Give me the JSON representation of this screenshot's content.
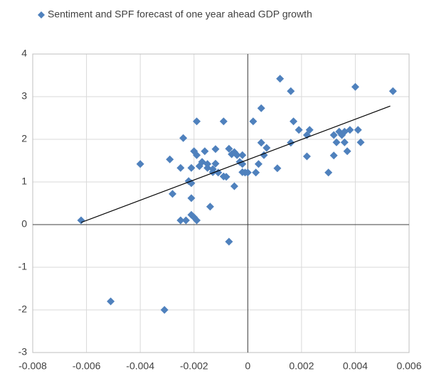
{
  "chart_data": {
    "type": "scatter",
    "series": [
      {
        "name": "Sentiment and SPF forecast of one year ahead GDP growth",
        "color": "#4f81bd",
        "x": [
          -0.0062,
          -0.0051,
          -0.004,
          -0.0031,
          -0.0029,
          -0.0028,
          -0.0025,
          -0.0025,
          -0.0024,
          -0.0023,
          -0.0022,
          -0.0021,
          -0.0021,
          -0.0021,
          -0.0021,
          -0.002,
          -0.002,
          -0.0019,
          -0.0019,
          -0.0019,
          -0.0018,
          -0.0017,
          -0.0016,
          -0.0015,
          -0.0015,
          -0.0014,
          -0.0013,
          -0.0013,
          -0.0012,
          -0.0012,
          -0.0011,
          -0.0009,
          -0.0009,
          -0.0008,
          -0.0007,
          -0.0007,
          -0.0006,
          -0.0005,
          -0.0005,
          -0.0004,
          -0.0003,
          -0.0002,
          -0.0002,
          -0.0002,
          -0.0001,
          0,
          0.0002,
          0.0003,
          0.0004,
          0.0005,
          0.0005,
          0.0006,
          0.0007,
          0.0011,
          0.0012,
          0.0016,
          0.0016,
          0.0017,
          0.0019,
          0.0022,
          0.0022,
          0.0023,
          0.003,
          0.0032,
          0.0032,
          0.0033,
          0.0034,
          0.0035,
          0.0036,
          0.0036,
          0.0037,
          0.0038,
          0.004,
          0.0041,
          0.0042,
          0.0054
        ],
        "values": [
          0.1,
          -1.8,
          1.42,
          -2.0,
          1.53,
          0.72,
          0.1,
          1.33,
          2.03,
          0.1,
          1.02,
          0.62,
          0.97,
          1.33,
          0.23,
          1.72,
          0.17,
          2.42,
          0.1,
          1.63,
          1.37,
          1.47,
          1.72,
          1.33,
          1.42,
          0.42,
          1.3,
          1.23,
          1.77,
          1.43,
          1.22,
          1.13,
          2.42,
          1.12,
          -0.4,
          1.78,
          1.65,
          0.9,
          1.7,
          1.63,
          1.47,
          1.23,
          1.42,
          1.63,
          1.22,
          1.22,
          2.42,
          1.22,
          1.42,
          1.92,
          2.73,
          1.63,
          1.8,
          1.32,
          3.42,
          3.13,
          1.92,
          2.42,
          2.22,
          2.1,
          1.6,
          2.22,
          1.22,
          2.1,
          1.62,
          1.93,
          2.18,
          2.1,
          1.93,
          2.18,
          1.72,
          2.22,
          3.23,
          2.22,
          1.93,
          3.13
        ]
      }
    ],
    "trendline": {
      "x": [
        -0.0062,
        0.0053
      ],
      "y": [
        0.05,
        2.78
      ],
      "color": "#000000"
    },
    "xlim": [
      -0.008,
      0.006
    ],
    "xticks": [
      -0.008,
      -0.006,
      -0.004,
      -0.002,
      0,
      0.002,
      0.004,
      0.006
    ],
    "ylim": [
      -3,
      4
    ],
    "yticks": [
      -3,
      -2,
      -1,
      0,
      1,
      2,
      3,
      4
    ],
    "grid": true
  }
}
